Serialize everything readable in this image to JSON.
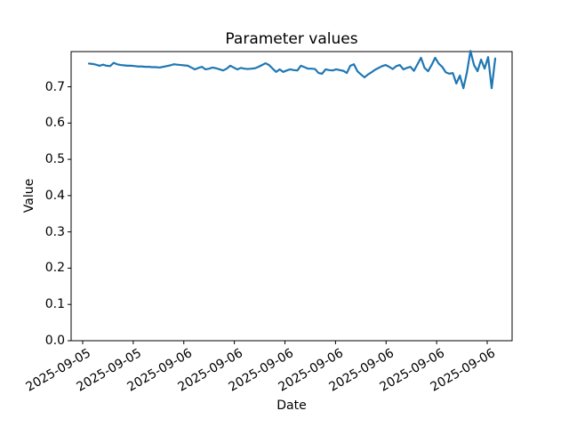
{
  "figure": {
    "background": "#ffffff",
    "text_color": "#000000"
  },
  "chart_data": {
    "type": "line",
    "title": "Parameter values",
    "xlabel": "Date",
    "ylabel": "Value",
    "line_color": "#1f77b4",
    "grid": false,
    "legend": "none",
    "ylim": [
      0.0,
      0.797
    ],
    "y_tick_labels": [
      "0.0",
      "0.1",
      "0.2",
      "0.3",
      "0.4",
      "0.5",
      "0.6",
      "0.7"
    ],
    "x_tick_labels": [
      "2025-09-05",
      "2025-09-05",
      "2025-09-06",
      "2025-09-06",
      "2025-09-06",
      "2025-09-06",
      "2025-09-06",
      "2025-09-06",
      "2025-09-06"
    ],
    "series": [
      {
        "name": "",
        "values": [
          0.764,
          0.763,
          0.761,
          0.758,
          0.761,
          0.758,
          0.757,
          0.766,
          0.762,
          0.76,
          0.759,
          0.758,
          0.758,
          0.757,
          0.756,
          0.756,
          0.755,
          0.755,
          0.754,
          0.754,
          0.753,
          0.755,
          0.757,
          0.759,
          0.762,
          0.761,
          0.76,
          0.759,
          0.758,
          0.753,
          0.748,
          0.752,
          0.755,
          0.748,
          0.75,
          0.753,
          0.751,
          0.748,
          0.745,
          0.75,
          0.758,
          0.753,
          0.748,
          0.752,
          0.75,
          0.749,
          0.75,
          0.751,
          0.755,
          0.76,
          0.765,
          0.76,
          0.75,
          0.741,
          0.748,
          0.741,
          0.745,
          0.748,
          0.746,
          0.745,
          0.758,
          0.754,
          0.75,
          0.75,
          0.749,
          0.738,
          0.736,
          0.748,
          0.746,
          0.745,
          0.748,
          0.746,
          0.744,
          0.738,
          0.758,
          0.762,
          0.743,
          0.734,
          0.726,
          0.734,
          0.74,
          0.747,
          0.752,
          0.757,
          0.76,
          0.755,
          0.749,
          0.757,
          0.76,
          0.748,
          0.752,
          0.755,
          0.744,
          0.762,
          0.78,
          0.752,
          0.743,
          0.76,
          0.78,
          0.764,
          0.755,
          0.74,
          0.736,
          0.738,
          0.709,
          0.731,
          0.696,
          0.74,
          0.799,
          0.76,
          0.743,
          0.775,
          0.75,
          0.782,
          0.696,
          0.778
        ]
      }
    ]
  }
}
